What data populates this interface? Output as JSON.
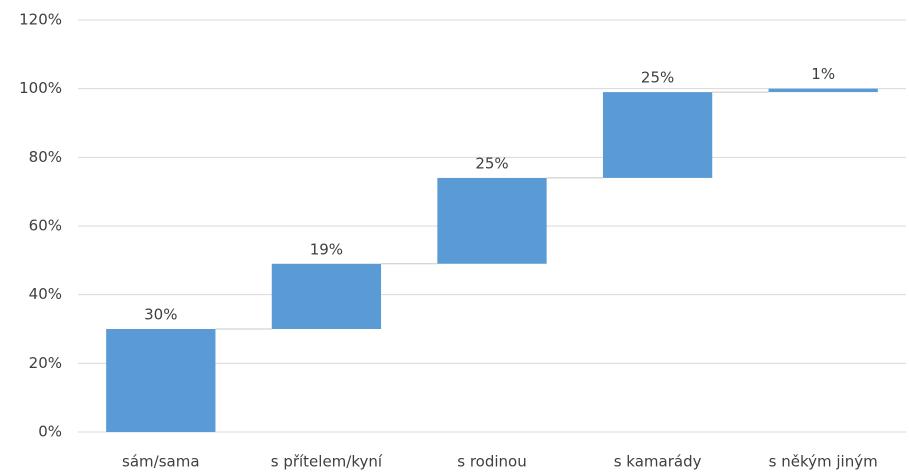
{
  "chart_data": {
    "type": "waterfall",
    "categories": [
      "sám/sama",
      "s přítelem/kyní",
      "s rodinou",
      "s kamarády",
      "s někým jiným"
    ],
    "values": [
      30,
      19,
      25,
      25,
      1
    ],
    "value_labels": [
      "30%",
      "19%",
      "25%",
      "25%",
      "1%"
    ],
    "color": "#5b9bd5",
    "ylim": [
      0,
      120
    ],
    "yticks": [
      {
        "value": 0,
        "label": "0%"
      },
      {
        "value": 20,
        "label": "20%"
      },
      {
        "value": 40,
        "label": "40%"
      },
      {
        "value": 60,
        "label": "60%"
      },
      {
        "value": 80,
        "label": "80%"
      },
      {
        "value": 100,
        "label": "100%"
      },
      {
        "value": 120,
        "label": "120%"
      }
    ],
    "grid": true
  }
}
